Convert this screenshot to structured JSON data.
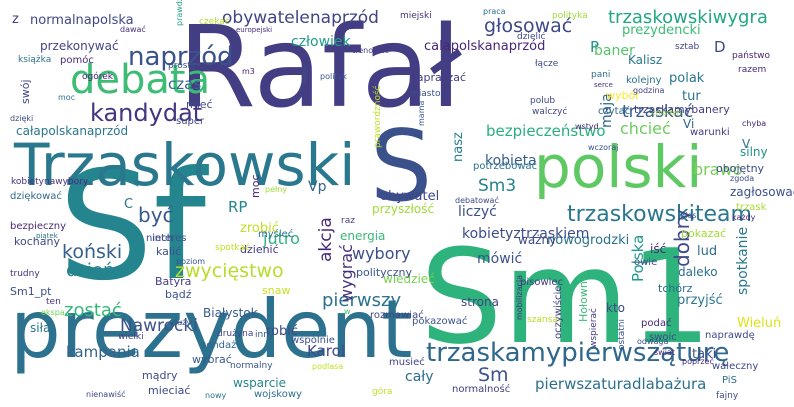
{
  "words": [
    {
      "text": "Rafał",
      "color": "#433d84"
    },
    {
      "text": "Sf",
      "color": "#25858e"
    },
    {
      "text": "Sm1",
      "color": "#2eb37c"
    },
    {
      "text": "prezydent",
      "color": "#2c728e"
    },
    {
      "text": "Trzaskowski",
      "color": "#2a788e"
    },
    {
      "text": "S",
      "color": "#3b518b"
    },
    {
      "text": "polski",
      "color": "#5ec962"
    },
    {
      "text": "debata",
      "color": "#3dbc74"
    },
    {
      "text": "trzaskamypierwsząturę",
      "color": "#30678d"
    },
    {
      "text": "naprzód",
      "color": "#3a538b"
    },
    {
      "text": "kandydat",
      "color": "#453581"
    },
    {
      "text": "trzaskowskiteam",
      "color": "#2a778e"
    },
    {
      "text": "zwycięstwo",
      "color": "#b5de2b"
    },
    {
      "text": "obywatelenaprzód",
      "color": "#414487"
    },
    {
      "text": "trzaskowskiwygra",
      "color": "#22a785"
    },
    {
      "text": "głosować",
      "color": "#3e4989"
    },
    {
      "text": "Sm2",
      "color": "#3b528b"
    },
    {
      "text": "Sm3",
      "color": "#26828e"
    },
    {
      "text": "pierwszy",
      "color": "#2c728e"
    },
    {
      "text": "być",
      "color": "#38598c"
    },
    {
      "text": "koński",
      "color": "#355f8d"
    },
    {
      "text": "dzień",
      "color": "#25858e"
    },
    {
      "text": "zostać",
      "color": "#35b779"
    },
    {
      "text": "Nawrocki",
      "color": "#3b528b"
    },
    {
      "text": "kampania",
      "color": "#33638d"
    },
    {
      "text": "normalnapolska",
      "color": "#3f4788"
    },
    {
      "text": "człowiek",
      "color": "#1f9e89"
    },
    {
      "text": "calapolskanaprzód",
      "color": "#482576"
    },
    {
      "text": "całapolskanaprzód",
      "color": "#2a768e"
    },
    {
      "text": "bezpieczeństwo",
      "color": "#29af7f"
    },
    {
      "text": "pierwszaturadlabażura",
      "color": "#2d708e"
    },
    {
      "text": "wybory",
      "color": "#3c4f8a"
    },
    {
      "text": "akcja",
      "color": "#482878"
    },
    {
      "text": "kobieta",
      "color": "#355e8d"
    },
    {
      "text": "kobietyztrzaskiem",
      "color": "#3d4d8a"
    },
    {
      "text": "trzaskać",
      "color": "#35608d"
    },
    {
      "text": "chcieć",
      "color": "#6ccd5a"
    },
    {
      "text": "dobry",
      "color": "#3e4a89"
    },
    {
      "text": "brawo",
      "color": "#73d056"
    },
    {
      "text": "Polska",
      "color": "#1e9b8a"
    },
    {
      "text": "wygrać",
      "color": "#46307e"
    },
    {
      "text": "mówić",
      "color": "#3b528b"
    },
    {
      "text": "jutro",
      "color": "#2db27d"
    },
    {
      "text": "Karol",
      "color": "#3e4989"
    },
    {
      "text": "cały",
      "color": "#2e6e8e"
    },
    {
      "text": "wsparcie",
      "color": "#25848e"
    },
    {
      "text": "Białystok",
      "color": "#375b8d"
    },
    {
      "text": "strona",
      "color": "#3f4788"
    },
    {
      "text": "spotkanie",
      "color": "#2a788e"
    },
    {
      "text": "liczyć",
      "color": "#3b528b"
    },
    {
      "text": "czas",
      "color": "#31668e"
    },
    {
      "text": "obywatel",
      "color": "#3f4788"
    },
    {
      "text": "nowogrodzki",
      "color": "#2c728e"
    },
    {
      "text": "RP",
      "color": "#24868e"
    },
    {
      "text": "Vp",
      "color": "#31668e"
    },
    {
      "text": "maja",
      "color": "#31668e"
    },
    {
      "text": "przyszłość",
      "color": "#a2da37"
    },
    {
      "text": "robić",
      "color": "#3e4a89"
    },
    {
      "text": "przyjść",
      "color": "#2a788e"
    },
    {
      "text": "zrobić",
      "color": "#c0df25"
    },
    {
      "text": "wiedzieć",
      "color": "#7ad151"
    },
    {
      "text": "tur",
      "color": "#2c728e"
    },
    {
      "text": "polak",
      "color": "#2a768e"
    },
    {
      "text": "baner",
      "color": "#52c569"
    },
    {
      "text": "przekonywać",
      "color": "#414487"
    },
    {
      "text": "trzaskamybanery",
      "color": "#433e85"
    },
    {
      "text": "prezydencki",
      "color": "#3dbc74"
    },
    {
      "text": "nasz",
      "color": "#277f8e"
    },
    {
      "text": "energia",
      "color": "#38b977"
    },
    {
      "text": "dzienić",
      "color": "#443983"
    },
    {
      "text": "Wieluń",
      "color": "#dde318"
    },
    {
      "text": "daleko",
      "color": "#2d708e"
    },
    {
      "text": "lud",
      "color": "#2e6e8e"
    },
    {
      "text": "kto",
      "color": "#3f4788"
    },
    {
      "text": "iść",
      "color": "#472c7a"
    },
    {
      "text": "wybór",
      "color": "#fde725"
    },
    {
      "text": "silny",
      "color": "#21918c"
    },
    {
      "text": "Kalisz",
      "color": "#2a788e"
    },
    {
      "text": "taki",
      "color": "#3c4f8a"
    },
    {
      "text": "kobietynawybory",
      "color": "#46327e"
    },
    {
      "text": "sondaż",
      "color": "#32648e"
    },
    {
      "text": "zapraszać",
      "color": "#433e85"
    },
    {
      "text": "pokazać",
      "color": "#a5db36"
    },
    {
      "text": "ważny",
      "color": "#3f4788"
    },
    {
      "text": "wybrać",
      "color": "#38588c"
    },
    {
      "text": "pokazować",
      "color": "#3a548c"
    },
    {
      "text": "kochany",
      "color": "#3e4a89"
    },
    {
      "text": "dziękować",
      "color": "#31678e"
    },
    {
      "text": "interes",
      "color": "#3b528b"
    },
    {
      "text": "kalić",
      "color": "#3b528b"
    },
    {
      "text": "moc",
      "color": "#482475"
    },
    {
      "text": "myśleć",
      "color": "#2c728e"
    },
    {
      "text": "Batyra",
      "color": "#433e85"
    },
    {
      "text": "snaw",
      "color": "#c8e020"
    },
    {
      "text": "polityczny",
      "color": "#3a548c"
    },
    {
      "text": "tchórz",
      "color": "#2f6c8e"
    },
    {
      "text": "pisowiec",
      "color": "#443a83"
    },
    {
      "text": "mieć",
      "color": "#3e4a89"
    },
    {
      "text": "pomóc",
      "color": "#482979"
    },
    {
      "text": "swój",
      "color": "#3f4788"
    },
    {
      "text": "prosty",
      "color": "#3d4e8a"
    },
    {
      "text": "zagłosować",
      "color": "#3b528b"
    },
    {
      "text": "obojętny",
      "color": "#3e4a89"
    },
    {
      "text": "warunki",
      "color": "#443983"
    },
    {
      "text": "trzask",
      "color": "#a8db34"
    },
    {
      "text": "czytać",
      "color": "#31668e"
    },
    {
      "text": "kolejny",
      "color": "#2c718e"
    },
    {
      "text": "potrzebować",
      "color": "#2d718e"
    },
    {
      "text": "wstyd",
      "color": "#482878"
    },
    {
      "text": "rozmawiać",
      "color": "#414487"
    },
    {
      "text": "podać",
      "color": "#482576"
    },
    {
      "text": "normalność",
      "color": "#433e85"
    },
    {
      "text": "musieć",
      "color": "#414487"
    },
    {
      "text": "mądry",
      "color": "#3d4d8a"
    },
    {
      "text": "mieciać",
      "color": "#3e4989"
    },
    {
      "text": "wojskowy",
      "color": "#2c718e"
    },
    {
      "text": "normalny",
      "color": "#39568c"
    },
    {
      "text": "wspólnie",
      "color": "#3b528b"
    },
    {
      "text": "bądź",
      "color": "#3b528b"
    },
    {
      "text": "niech",
      "color": "#3e4989"
    },
    {
      "text": "Sm1_pt",
      "color": "#3b518b"
    },
    {
      "text": "trudny",
      "color": "#46307e"
    },
    {
      "text": "ten",
      "color": "#46327e"
    },
    {
      "text": "siła",
      "color": "#2a778e"
    },
    {
      "text": "wielki",
      "color": "#433e85"
    },
    {
      "text": "duży",
      "color": "#3b528b"
    },
    {
      "text": "poziom",
      "color": "#3a548c"
    },
    {
      "text": "drużyna",
      "color": "#3f4788"
    },
    {
      "text": "spotkać",
      "color": "#c2df23"
    },
    {
      "text": "pełny",
      "color": "#a2da37"
    },
    {
      "text": "owie",
      "color": "#3e4a89"
    },
    {
      "text": "kolejny2",
      "color": "#2c718e"
    },
    {
      "text": "Hołownia",
      "color": "#38b977"
    },
    {
      "text": "oczywiście",
      "color": "#433e85"
    },
    {
      "text": "wspierać",
      "color": "#443983"
    },
    {
      "text": "naprawdę",
      "color": "#3e4989"
    },
    {
      "text": "waleczny",
      "color": "#3f4788"
    },
    {
      "text": "PiS",
      "color": "#2d708e"
    },
    {
      "text": "fajny",
      "color": "#3d4d8a"
    },
    {
      "text": "świat",
      "color": "#482475"
    },
    {
      "text": "poprzeć",
      "color": "#482878"
    },
    {
      "text": "swoic",
      "color": "#3e4989"
    },
    {
      "text": "ostatni",
      "color": "#3a548c"
    },
    {
      "text": "odwaga",
      "color": "#3e4a89"
    },
    {
      "text": "mobilizacja",
      "color": "#46327e"
    },
    {
      "text": "szansa",
      "color": "#b8de29"
    },
    {
      "text": "podlasa",
      "color": "#c0df25"
    },
    {
      "text": "góra",
      "color": "#c0df25"
    },
    {
      "text": "nienawiść",
      "color": "#3f4788"
    },
    {
      "text": "nowy",
      "color": "#2c718e"
    },
    {
      "text": "inny",
      "color": "#3a548c"
    },
    {
      "text": "w",
      "color": "#4ac16d"
    },
    {
      "text": "ekspa",
      "color": "#73d056"
    },
    {
      "text": "dziękować2",
      "color": "#31678e"
    },
    {
      "text": "bezpieczny",
      "color": "#482878"
    },
    {
      "text": "piątek",
      "color": "#2c718e"
    },
    {
      "text": "z",
      "color": "#433e85"
    },
    {
      "text": "książka",
      "color": "#2d708e"
    },
    {
      "text": "ogórek",
      "color": "#482576"
    },
    {
      "text": "moc2",
      "color": "#2c718e"
    },
    {
      "text": "dzięki",
      "color": "#3e4989"
    },
    {
      "text": "super",
      "color": "#3f4788"
    },
    {
      "text": "prawdziwy",
      "color": "#1f9e89"
    },
    {
      "text": "czekać",
      "color": "#b5de2b"
    },
    {
      "text": "dawać",
      "color": "#46307e"
    },
    {
      "text": "europejski",
      "color": "#472d7b"
    },
    {
      "text": "prosty2",
      "color": "#3d4e8a"
    },
    {
      "text": "miejski",
      "color": "#46327e"
    },
    {
      "text": "praca",
      "color": "#2d708e"
    },
    {
      "text": "dzielić",
      "color": "#3e4989"
    },
    {
      "text": "polityka",
      "color": "#a0da39"
    },
    {
      "text": "państwo",
      "color": "#482576"
    },
    {
      "text": "sztab",
      "color": "#3f4788"
    },
    {
      "text": "razem",
      "color": "#482878"
    },
    {
      "text": "Vi",
      "color": "#31668e"
    },
    {
      "text": "D",
      "color": "#3e4a89"
    },
    {
      "text": "P",
      "color": "#20928c"
    },
    {
      "text": "V",
      "color": "#2d718e"
    },
    {
      "text": "C",
      "color": "#2c718e"
    },
    {
      "text": "m3",
      "color": "#482475"
    },
    {
      "text": "trenować",
      "color": "#433e85"
    },
    {
      "text": "unia",
      "color": "#3d4e8a"
    },
    {
      "text": "polityk",
      "color": "#3a548c"
    },
    {
      "text": "miasto",
      "color": "#3d4e8a"
    },
    {
      "text": "prawordzność",
      "color": "#c0df25"
    },
    {
      "text": "mama",
      "color": "#3a548c"
    },
    {
      "text": "polub",
      "color": "#3e4989"
    },
    {
      "text": "walczyć",
      "color": "#3f4788"
    },
    {
      "text": "pani",
      "color": "#2d708e"
    },
    {
      "text": "serce",
      "color": "#46307e"
    },
    {
      "text": "łącze",
      "color": "#3e4989"
    },
    {
      "text": "godzina",
      "color": "#433e85"
    },
    {
      "text": "cmarteh",
      "color": "#a2da37"
    },
    {
      "text": "chyba",
      "color": "#482475"
    },
    {
      "text": "zgoda",
      "color": "#3e4989"
    },
    {
      "text": "wczoraj",
      "color": "#3a548c"
    },
    {
      "text": "debatować",
      "color": "#3e4989"
    },
    {
      "text": "raz",
      "color": "#433e85"
    },
    {
      "text": "głos",
      "color": "#3a548c"
    },
    {
      "text": "każdy",
      "color": "#482475"
    }
  ]
}
